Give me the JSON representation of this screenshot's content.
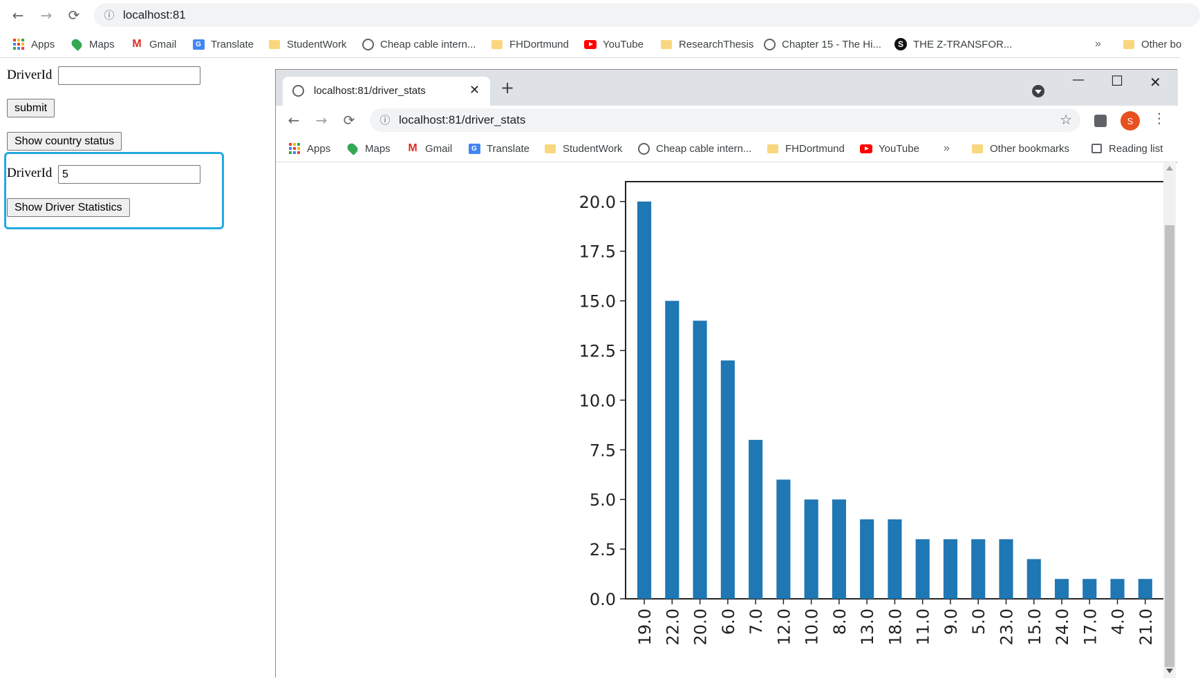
{
  "outer_browser": {
    "url": "localhost:81",
    "nav": {
      "back": "←",
      "forward": "→",
      "reload": "⟳",
      "info": "ⓘ"
    },
    "bookmarks": [
      {
        "label": "Apps",
        "icon": "apps-grid-icon"
      },
      {
        "label": "Maps",
        "icon": "maps-icon"
      },
      {
        "label": "Gmail",
        "icon": "gmail-icon"
      },
      {
        "label": "Translate",
        "icon": "translate-icon"
      },
      {
        "label": "StudentWork",
        "icon": "folder-icon"
      },
      {
        "label": "Cheap cable intern...",
        "icon": "globe-icon"
      },
      {
        "label": "FHDortmund",
        "icon": "folder-icon"
      },
      {
        "label": "YouTube",
        "icon": "youtube-icon"
      },
      {
        "label": "ResearchThesis",
        "icon": "folder-icon"
      },
      {
        "label": "Chapter 15 - The Hi...",
        "icon": "globe-icon"
      },
      {
        "label": "THE Z-TRANSFOR...",
        "icon": "s-logo-icon"
      }
    ],
    "overflow": "»",
    "other_bookmarks": "Other bo"
  },
  "page": {
    "driver_label_1": "DriverId",
    "driver_input_1_value": "",
    "submit_label": "submit",
    "country_status_label": "Show country status",
    "driver_label_2": "DriverId",
    "driver_input_2_value": "5",
    "driver_stats_label": "Show Driver Statistics"
  },
  "popup_window": {
    "tab_title": "localhost:81/driver_stats",
    "tab_close": "✕",
    "new_tab": "+",
    "window_controls": {
      "minimize": "—",
      "maximize": "☐",
      "close": "✕"
    },
    "url": "localhost:81/driver_stats",
    "star": "☆",
    "avatar_letter": "S",
    "menu": "⋮",
    "bookmarks": [
      {
        "label": "Apps",
        "icon": "apps-grid-icon"
      },
      {
        "label": "Maps",
        "icon": "maps-icon"
      },
      {
        "label": "Gmail",
        "icon": "gmail-icon"
      },
      {
        "label": "Translate",
        "icon": "translate-icon"
      },
      {
        "label": "StudentWork",
        "icon": "folder-icon"
      },
      {
        "label": "Cheap cable intern...",
        "icon": "globe-icon"
      },
      {
        "label": "FHDortmund",
        "icon": "folder-icon"
      },
      {
        "label": "YouTube",
        "icon": "youtube-icon"
      }
    ],
    "overflow": "»",
    "other_bookmarks": "Other bookmarks",
    "reading_list": "Reading list"
  },
  "colors": {
    "bar": "#1f77b4",
    "highlight": "#21a9e1"
  },
  "chart_data": {
    "type": "bar",
    "categories": [
      "19.0",
      "22.0",
      "20.0",
      "6.0",
      "7.0",
      "12.0",
      "10.0",
      "8.0",
      "13.0",
      "18.0",
      "11.0",
      "9.0",
      "5.0",
      "23.0",
      "15.0",
      "24.0",
      "17.0",
      "4.0",
      "21.0"
    ],
    "values": [
      20,
      15,
      14,
      12,
      8,
      6,
      5,
      5,
      4,
      4,
      3,
      3,
      3,
      3,
      2,
      1,
      1,
      1,
      1
    ],
    "ylim": [
      0,
      21
    ],
    "yticks": [
      "0.0",
      "2.5",
      "5.0",
      "7.5",
      "10.0",
      "12.5",
      "15.0",
      "17.5",
      "20.0"
    ],
    "title": "",
    "xlabel": "",
    "ylabel": "",
    "grid": false
  }
}
